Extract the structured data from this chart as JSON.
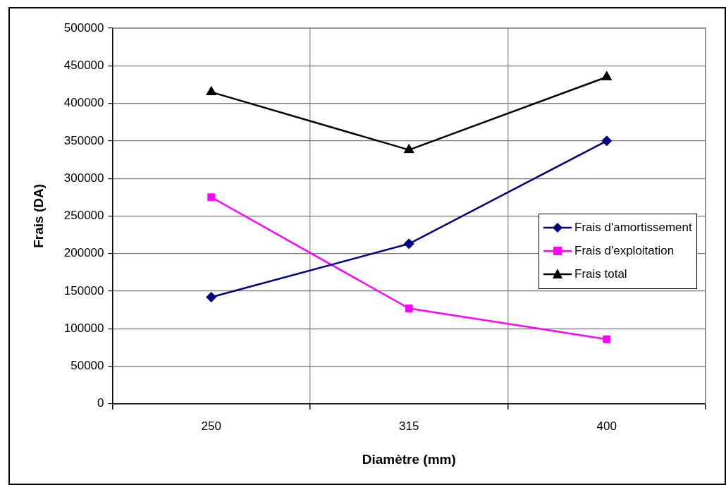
{
  "chart_data": {
    "type": "line",
    "xlabel": "Diamètre (mm)",
    "ylabel": "Frais (DA)",
    "categories": [
      "250",
      "315",
      "400"
    ],
    "series": [
      {
        "name": "Frais d'amortissement",
        "color": "#000080",
        "marker": "diamond",
        "values": [
          142000,
          213000,
          350000
        ]
      },
      {
        "name": "Frais d'exploitation",
        "color": "#ff00ff",
        "marker": "square",
        "values": [
          275000,
          127000,
          86000
        ]
      },
      {
        "name": "Frais total",
        "color": "#000000",
        "marker": "triangle",
        "values": [
          415000,
          338000,
          435000
        ]
      }
    ],
    "ylim": [
      0,
      500000
    ],
    "yticks": [
      0,
      50000,
      100000,
      150000,
      200000,
      250000,
      300000,
      350000,
      400000,
      450000,
      500000
    ],
    "grid": true,
    "legend": "right",
    "line_style": "solid"
  }
}
